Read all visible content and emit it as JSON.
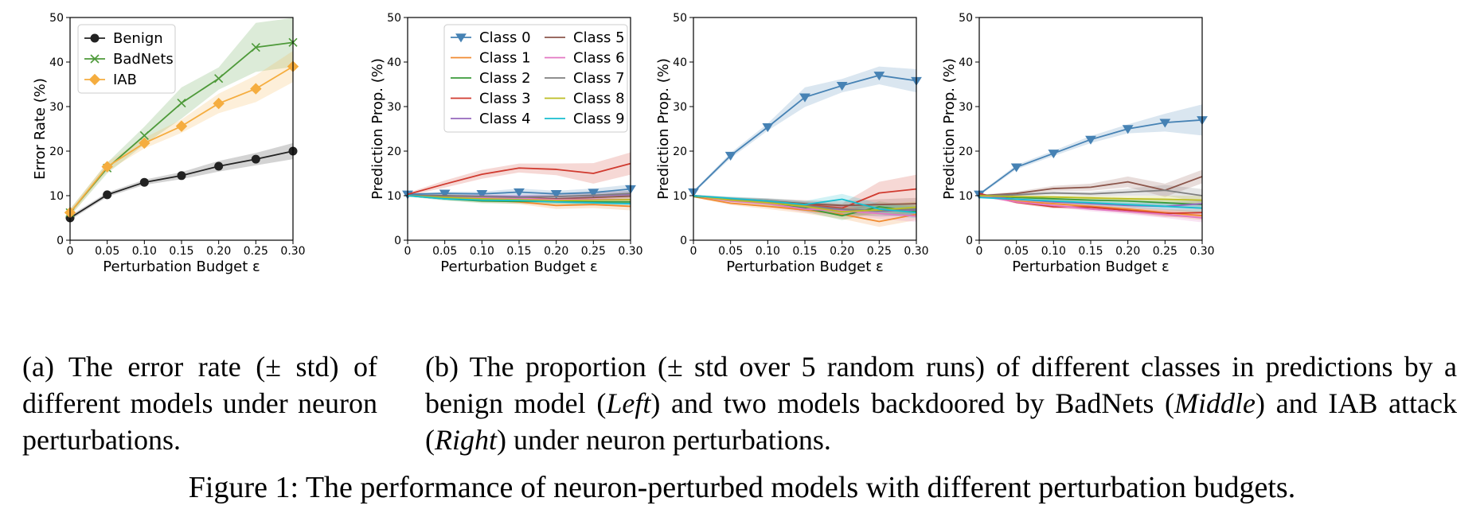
{
  "captions": {
    "a_prefix": "(a)",
    "a_text": "The error rate (± std) of different models under neuron perturbations.",
    "b_prefix": "(b)",
    "b_text_1": "The proportion (± std over 5 random runs) of different classes in predictions by a benign model (",
    "b_left": "Left",
    "b_text_2": ") and two models backdoored by BadNets (",
    "b_middle": "Middle",
    "b_text_3": ") and IAB attack (",
    "b_right": "Right",
    "b_text_4": ") under neuron perturbations.",
    "figure": "Figure 1: The performance of neuron-perturbed models with different perturbation budgets."
  },
  "chart_data": [
    {
      "type": "line",
      "panel": "a",
      "title": "",
      "xlabel": "Perturbation Budget ε",
      "ylabel": "Error Rate (%)",
      "x": [
        0,
        0.05,
        0.1,
        0.15,
        0.2,
        0.25,
        0.3
      ],
      "xticks": [
        "0",
        "0.05",
        "0.10",
        "0.15",
        "0.20",
        "0.25",
        "0.30"
      ],
      "ylim": [
        0,
        50
      ],
      "yticks": [
        0,
        10,
        20,
        30,
        40,
        50
      ],
      "legend": "top-left",
      "series": [
        {
          "name": "Benign",
          "color": "#222222",
          "marker": "circle",
          "values": [
            5,
            10.2,
            13,
            14.5,
            16.6,
            18.2,
            20
          ],
          "std": [
            0.5,
            0.5,
            0.6,
            0.8,
            1.2,
            1.4,
            1.8
          ]
        },
        {
          "name": "BadNets",
          "color": "#4e9a3a",
          "marker": "x",
          "values": [
            6.2,
            16.2,
            23.5,
            30.8,
            36.3,
            43.3,
            44.4
          ],
          "std": [
            0.8,
            1.2,
            2.0,
            3.5,
            2.5,
            5.5,
            5.5
          ]
        },
        {
          "name": "IAB",
          "color": "#f5ad3f",
          "marker": "diamond",
          "values": [
            6.2,
            16.5,
            21.8,
            25.6,
            30.7,
            34,
            39
          ],
          "std": [
            0.8,
            1.0,
            1.2,
            1.5,
            2.2,
            3.0,
            3.5
          ]
        }
      ]
    },
    {
      "type": "line",
      "panel": "b-left",
      "title": "",
      "xlabel": "Perturbation Budget ε",
      "ylabel": "Prediction Prop. (%)",
      "x": [
        0,
        0.05,
        0.1,
        0.15,
        0.2,
        0.25,
        0.3
      ],
      "xticks": [
        "0",
        "0.05",
        "0.10",
        "0.15",
        "0.20",
        "0.25",
        "0.30"
      ],
      "ylim": [
        0,
        50
      ],
      "yticks": [
        0,
        10,
        20,
        30,
        40,
        50
      ],
      "legend": "top-center",
      "series": [
        {
          "name": "Class 0",
          "color": "#4682b4",
          "marker": "triangle-down",
          "values": [
            10.3,
            10.5,
            10.4,
            10.8,
            10.4,
            10.7,
            11.5
          ],
          "std": [
            0.3,
            0.4,
            0.5,
            0.8,
            0.7,
            0.9,
            1.0
          ]
        },
        {
          "name": "Class 1",
          "color": "#f08a30",
          "values": [
            10,
            9.8,
            9,
            8.6,
            7.8,
            8,
            7.6
          ],
          "std": [
            0.2,
            0.4,
            0.5,
            0.5,
            0.8,
            0.8,
            0.9
          ]
        },
        {
          "name": "Class 2",
          "color": "#3a9a3a",
          "values": [
            10,
            9.3,
            8.8,
            8.7,
            8.7,
            8.6,
            8.6
          ],
          "std": [
            0.2,
            0.4,
            0.5,
            0.5,
            0.6,
            0.6,
            0.6
          ]
        },
        {
          "name": "Class 3",
          "color": "#d03a2f",
          "values": [
            10.3,
            12.6,
            14.8,
            16.2,
            15.9,
            15,
            17.2
          ],
          "std": [
            0.3,
            0.8,
            1.0,
            1.0,
            1.3,
            2.3,
            2.5
          ]
        },
        {
          "name": "Class 4",
          "color": "#9467bd",
          "values": [
            10,
            9.9,
            9.9,
            9.8,
            9.8,
            10,
            10.3
          ],
          "std": [
            0.2,
            0.3,
            0.3,
            0.5,
            0.5,
            0.7,
            0.8
          ]
        },
        {
          "name": "Class 5",
          "color": "#8c564b",
          "values": [
            10,
            10,
            9.8,
            9.5,
            9.3,
            9.6,
            9.9
          ],
          "std": [
            0.2,
            0.3,
            0.3,
            0.4,
            0.5,
            0.6,
            0.8
          ]
        },
        {
          "name": "Class 6",
          "color": "#e377c2",
          "values": [
            10,
            9.7,
            9.5,
            9.4,
            9.1,
            9.2,
            9.1
          ],
          "std": [
            0.2,
            0.3,
            0.3,
            0.4,
            0.4,
            0.5,
            0.6
          ]
        },
        {
          "name": "Class 7",
          "color": "#7f7f7f",
          "values": [
            10,
            9.9,
            9.8,
            9.6,
            9.8,
            10.1,
            10.5
          ],
          "std": [
            0.2,
            0.3,
            0.3,
            0.4,
            0.5,
            0.6,
            0.7
          ]
        },
        {
          "name": "Class 8",
          "color": "#bcbd22",
          "values": [
            10,
            9.6,
            9.3,
            9.1,
            8.9,
            9.0,
            9.1
          ],
          "std": [
            0.2,
            0.3,
            0.3,
            0.4,
            0.4,
            0.5,
            0.6
          ]
        },
        {
          "name": "Class 9",
          "color": "#17becf",
          "values": [
            10,
            9.3,
            9.0,
            8.9,
            8.6,
            8.4,
            8.2
          ],
          "std": [
            0.2,
            0.3,
            0.3,
            0.4,
            0.4,
            0.5,
            0.6
          ]
        }
      ]
    },
    {
      "type": "line",
      "panel": "b-middle",
      "title": "",
      "xlabel": "Perturbation Budget ε",
      "ylabel": "Prediction Prop. (%)",
      "x": [
        0,
        0.05,
        0.1,
        0.15,
        0.2,
        0.25,
        0.3
      ],
      "xticks": [
        "0",
        "0.05",
        "0.10",
        "0.15",
        "0.20",
        "0.25",
        "0.30"
      ],
      "ylim": [
        0,
        50
      ],
      "yticks": [
        0,
        10,
        20,
        30,
        40,
        50
      ],
      "legend": "none",
      "series": [
        {
          "name": "Class 0",
          "color": "#4682b4",
          "marker": "triangle-down",
          "values": [
            10.8,
            19,
            25.4,
            32.1,
            34.7,
            37,
            35.8
          ],
          "std": [
            0.3,
            0.6,
            0.8,
            2.2,
            1.5,
            2.0,
            2.6
          ]
        },
        {
          "name": "Class 1",
          "color": "#f08a30",
          "values": [
            9.8,
            8.3,
            7.6,
            6.8,
            5.8,
            4.2,
            5.8
          ],
          "std": [
            0.2,
            0.4,
            0.6,
            0.8,
            1.0,
            1.2,
            1.3
          ]
        },
        {
          "name": "Class 2",
          "color": "#3a9a3a",
          "values": [
            9.8,
            9.2,
            8.5,
            7.2,
            5.5,
            7.5,
            6.5
          ],
          "std": [
            0.2,
            0.4,
            0.6,
            0.8,
            1.0,
            1.2,
            1.3
          ]
        },
        {
          "name": "Class 3",
          "color": "#d03a2f",
          "values": [
            10,
            9.2,
            8.7,
            8,
            7.2,
            10.6,
            11.5
          ],
          "std": [
            0.2,
            0.4,
            0.6,
            0.8,
            1.0,
            2.5,
            3.2
          ]
        },
        {
          "name": "Class 4",
          "color": "#9467bd",
          "values": [
            10,
            9.0,
            8.6,
            7.5,
            6.8,
            6.5,
            6.8
          ],
          "std": [
            0.2,
            0.4,
            0.6,
            0.8,
            1.0,
            1.2,
            1.3
          ]
        },
        {
          "name": "Class 5",
          "color": "#8c564b",
          "values": [
            10,
            9.3,
            8.8,
            8.2,
            7.8,
            8.0,
            8.2
          ],
          "std": [
            0.2,
            0.4,
            0.6,
            0.8,
            1.0,
            1.2,
            1.3
          ]
        },
        {
          "name": "Class 6",
          "color": "#e377c2",
          "values": [
            10,
            8.8,
            8.2,
            7.0,
            6.6,
            6.0,
            5.4
          ],
          "std": [
            0.2,
            0.4,
            0.6,
            0.8,
            1.0,
            1.2,
            1.3
          ]
        },
        {
          "name": "Class 7",
          "color": "#7f7f7f",
          "values": [
            10,
            9.2,
            8.6,
            7.8,
            7.0,
            6.6,
            7.0
          ],
          "std": [
            0.2,
            0.4,
            0.6,
            0.8,
            1.0,
            1.2,
            1.3
          ]
        },
        {
          "name": "Class 8",
          "color": "#bcbd22",
          "values": [
            10,
            9.0,
            8.4,
            7.6,
            6.4,
            6.8,
            7.4
          ],
          "std": [
            0.2,
            0.4,
            0.6,
            0.8,
            1.0,
            1.2,
            1.3
          ]
        },
        {
          "name": "Class 9",
          "color": "#17becf",
          "values": [
            10,
            9.4,
            8.8,
            8.0,
            9.2,
            7.0,
            6.2
          ],
          "std": [
            0.2,
            0.4,
            0.6,
            0.8,
            1.2,
            1.2,
            1.3
          ]
        }
      ]
    },
    {
      "type": "line",
      "panel": "b-right",
      "title": "",
      "xlabel": "Perturbation Budget ε",
      "ylabel": "Prediction Prop. (%)",
      "x": [
        0,
        0.05,
        0.1,
        0.15,
        0.2,
        0.25,
        0.3
      ],
      "xticks": [
        "0",
        "0.05",
        "0.10",
        "0.15",
        "0.20",
        "0.25",
        "0.30"
      ],
      "ylim": [
        0,
        50
      ],
      "yticks": [
        0,
        10,
        20,
        30,
        40,
        50
      ],
      "legend": "none",
      "series": [
        {
          "name": "Class 0",
          "color": "#4682b4",
          "marker": "triangle-down",
          "values": [
            10.3,
            16.4,
            19.5,
            22.6,
            25,
            26.4,
            27
          ],
          "std": [
            0.3,
            0.5,
            0.6,
            0.8,
            1.0,
            2.0,
            3.5
          ]
        },
        {
          "name": "Class 1",
          "color": "#f08a30",
          "values": [
            10,
            8.8,
            8.2,
            7.6,
            7.0,
            6.2,
            5.5
          ],
          "std": [
            0.2,
            0.3,
            0.4,
            0.5,
            0.6,
            0.8,
            1.0
          ]
        },
        {
          "name": "Class 2",
          "color": "#3a9a3a",
          "values": [
            10,
            9.6,
            9.3,
            9.0,
            8.8,
            8.4,
            8.0
          ],
          "std": [
            0.2,
            0.3,
            0.4,
            0.5,
            0.6,
            0.8,
            1.0
          ]
        },
        {
          "name": "Class 3",
          "color": "#d03a2f",
          "values": [
            10.5,
            8.5,
            7.5,
            7.4,
            6.7,
            6.0,
            6.2
          ],
          "std": [
            0.2,
            0.3,
            0.4,
            0.5,
            0.6,
            0.8,
            1.0
          ]
        },
        {
          "name": "Class 4",
          "color": "#9467bd",
          "values": [
            10,
            9.2,
            8.6,
            8.2,
            7.8,
            7.6,
            8.2
          ],
          "std": [
            0.2,
            0.3,
            0.4,
            0.5,
            0.6,
            0.8,
            1.0
          ]
        },
        {
          "name": "Class 5",
          "color": "#8c564b",
          "values": [
            10,
            10.5,
            11.6,
            11.9,
            13.1,
            11.2,
            14.3
          ],
          "std": [
            0.2,
            0.4,
            0.6,
            0.8,
            1.2,
            1.5,
            1.5
          ]
        },
        {
          "name": "Class 6",
          "color": "#e377c2",
          "values": [
            10,
            8.6,
            7.8,
            7.0,
            6.4,
            5.8,
            5.0
          ],
          "std": [
            0.2,
            0.3,
            0.4,
            0.5,
            0.6,
            0.8,
            1.0
          ]
        },
        {
          "name": "Class 7",
          "color": "#7f7f7f",
          "values": [
            10,
            10.2,
            10.6,
            10.4,
            10.8,
            11.2,
            10.0
          ],
          "std": [
            0.2,
            0.3,
            0.4,
            0.5,
            0.8,
            1.2,
            1.5
          ]
        },
        {
          "name": "Class 8",
          "color": "#bcbd22",
          "values": [
            10,
            9.8,
            9.7,
            9.5,
            9.3,
            9.2,
            9.0
          ],
          "std": [
            0.2,
            0.3,
            0.4,
            0.5,
            0.6,
            0.8,
            1.0
          ]
        },
        {
          "name": "Class 9",
          "color": "#17becf",
          "values": [
            9.6,
            9.2,
            8.8,
            8.4,
            8.0,
            7.6,
            7.2
          ],
          "std": [
            0.2,
            0.3,
            0.4,
            0.5,
            0.6,
            0.8,
            1.0
          ]
        }
      ]
    }
  ]
}
